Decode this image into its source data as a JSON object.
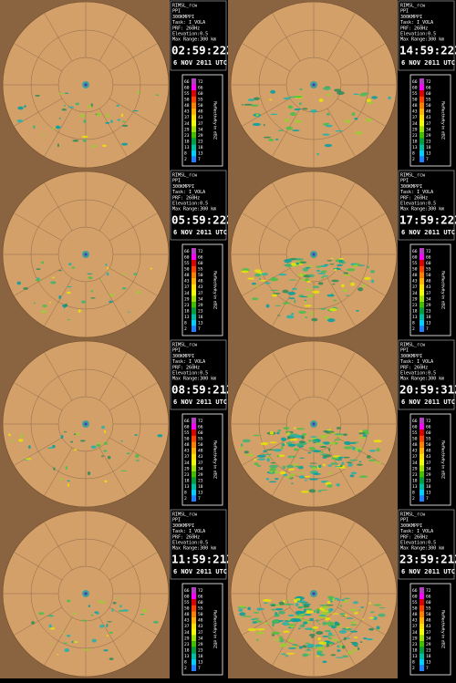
{
  "info_lines": [
    "RIMSL_rcw",
    "PPI",
    "300KMPPI",
    "Task: I_VOLA",
    "PRF: 260Hz",
    "Elevation:0.5",
    "Max Range:300 km"
  ],
  "scale_label": "Reflectivity in dBZ",
  "scale": [
    [
      "66",
      "72"
    ],
    [
      "60",
      "66"
    ],
    [
      "55",
      "60"
    ],
    [
      "50",
      "55"
    ],
    [
      "48",
      "50"
    ],
    [
      "43",
      "48"
    ],
    [
      "37",
      "43"
    ],
    [
      "34",
      "37"
    ],
    [
      "29",
      "34"
    ],
    [
      "23",
      "29"
    ],
    [
      "18",
      "23"
    ],
    [
      "13",
      "18"
    ],
    [
      "8",
      "13"
    ],
    [
      "2",
      "7"
    ]
  ],
  "panels": [
    {
      "time": "02:59:22Z",
      "date": "6 NOV 2011 UTC"
    },
    {
      "time": "14:59:22Z",
      "date": "6 NOV 2011 UTC"
    },
    {
      "time": "05:59:22Z",
      "date": "6 NOV 2011 UTC"
    },
    {
      "time": "17:59:22Z",
      "date": "6 NOV 2011 UTC"
    },
    {
      "time": "08:59:21Z",
      "date": "6 NOV 2011 UTC"
    },
    {
      "time": "20:59:31Z",
      "date": "6 NOV 2011 UTC"
    },
    {
      "time": "11:59:21Z",
      "date": "6 NOV 2011 UTC"
    },
    {
      "time": "23:59:21Z",
      "date": "6 NOV 2011 UTC"
    }
  ]
}
